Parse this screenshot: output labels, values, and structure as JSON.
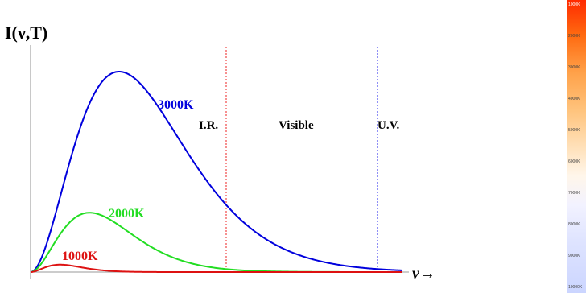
{
  "chart_data": {
    "type": "line",
    "ylabel": "I(ν,T)",
    "xlabel": "ν→",
    "series": [
      {
        "name": "3000K",
        "temperature_k": 3000,
        "color": "#0000dd"
      },
      {
        "name": "2000K",
        "temperature_k": 2000,
        "color": "#22dd22"
      },
      {
        "name": "1000K",
        "temperature_k": 1000,
        "color": "#dd1111"
      }
    ],
    "region_labels": [
      "I.R.",
      "Visible",
      "U.V."
    ],
    "boundary_lines": [
      {
        "name": "ir-visible-boundary",
        "color": "#ee2222"
      },
      {
        "name": "visible-uv-boundary",
        "color": "#2222ee"
      }
    ],
    "grid": false,
    "colorbar": {
      "ticks": [
        "1000K",
        "2000K",
        "3000K",
        "4000K",
        "5000K",
        "6000K",
        "7000K",
        "8000K",
        "9000K",
        "10000K"
      ]
    }
  }
}
